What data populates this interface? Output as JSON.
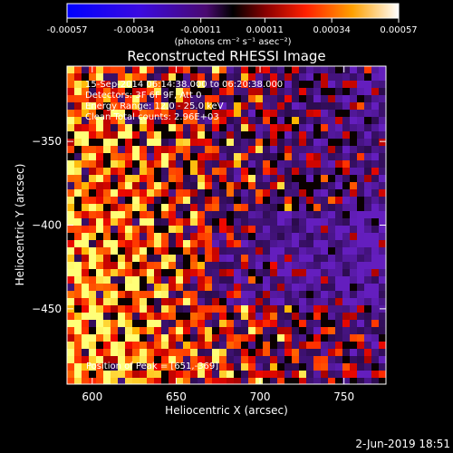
{
  "chart_data": {
    "type": "heatmap",
    "title": "Reconstructed RHESSI Image",
    "xlabel": "Heliocentric X (arcsec)",
    "ylabel": "Heliocentric Y (arcsec)",
    "xlim": [
      585,
      775
    ],
    "ylim": [
      -495,
      -305
    ],
    "x_ticks": [
      600,
      650,
      700,
      750
    ],
    "y_ticks": [
      -350,
      -400,
      -450
    ],
    "x_tick_labels": [
      "600",
      "650",
      "700",
      "750"
    ],
    "y_tick_labels": [
      "-350",
      "-400",
      "-450"
    ],
    "colorbar": {
      "ticks": [
        -0.00057,
        -0.00034,
        -0.00011,
        0.00011,
        0.00034,
        0.00057
      ],
      "tick_labels": [
        "-0.00057",
        "-0.00034",
        "-0.00011",
        "0.00011",
        "0.00034",
        "0.00057"
      ],
      "unit_label": "(photons cm⁻² s⁻¹ asec⁻²)"
    },
    "annotations": [
      "15-Sep-2014 06:14:38.000 to 06:20:38.000",
      "Detectors: 3F 6F 9F, Att 0",
      "Energy Range: 12.0 - 25.0 keV",
      "Clean    Total counts: 2.96E+03"
    ],
    "peak_label": "Position of Peak = [651,-369]",
    "peak": [
      651,
      -369
    ],
    "footer_date": "2-Jun-2019 18:51",
    "grid": false
  }
}
